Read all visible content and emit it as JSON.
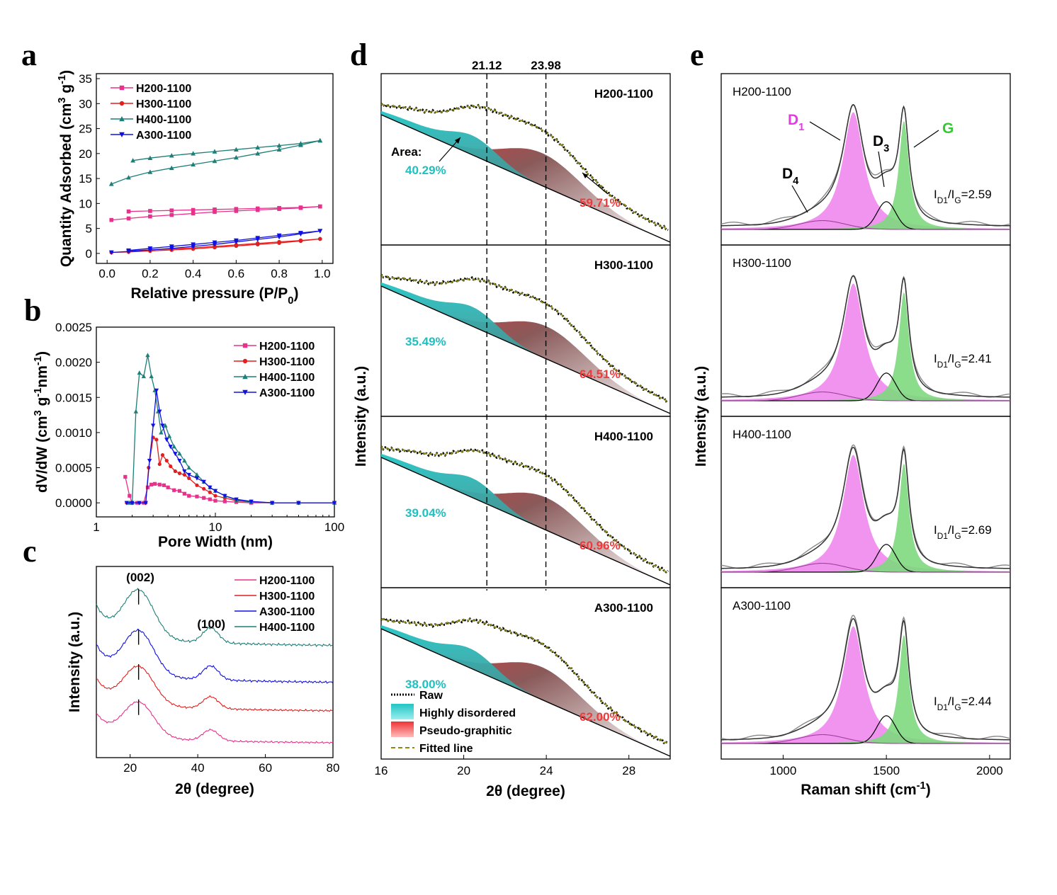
{
  "colors": {
    "H200": "#e8308c",
    "H300": "#e41e1e",
    "H400": "#1d7f78",
    "A300": "#1010e0",
    "disordered": "#22c4c4",
    "pseudo": "#ee3434",
    "fit": "#8a8a10",
    "cyan_text": "#20c0c0",
    "red_text": "#ee3a3a",
    "D1": "#e838e8",
    "G": "#35c835",
    "magenta_fill": "#ee88ee",
    "green_fill": "#7ed87e"
  },
  "panels": {
    "a": "a",
    "b": "b",
    "c": "c",
    "d": "d",
    "e": "e"
  },
  "chart_data": [
    {
      "id": "a",
      "type": "line",
      "xlabel": "Relative pressure (P/P",
      "xlabel_sub": "0",
      "xlabel_end": ")",
      "ylabel": "Quantity Adsorbed (cm",
      "ylabel_sup": "3",
      "ylabel_mid": " g",
      "ylabel_sup2": "-1",
      "ylabel_end": ")",
      "xlim": [
        -0.05,
        1.05
      ],
      "ylim": [
        -2,
        36
      ],
      "xticks": [
        "0.0",
        "0.2",
        "0.4",
        "0.6",
        "0.8",
        "1.0"
      ],
      "yticks": [
        "0",
        "5",
        "10",
        "15",
        "20",
        "25",
        "30",
        "35"
      ],
      "legend_position": "top-left",
      "series": [
        {
          "name": "H200-1100",
          "key": "H200",
          "marker": "square",
          "adsorption": [
            [
              0.02,
              6.7
            ],
            [
              0.1,
              7.0
            ],
            [
              0.2,
              7.4
            ],
            [
              0.3,
              7.7
            ],
            [
              0.4,
              8.0
            ],
            [
              0.5,
              8.3
            ],
            [
              0.6,
              8.5
            ],
            [
              0.7,
              8.7
            ],
            [
              0.8,
              8.9
            ],
            [
              0.9,
              9.1
            ],
            [
              0.99,
              9.4
            ]
          ],
          "desorption": [
            [
              0.99,
              9.4
            ],
            [
              0.9,
              9.2
            ],
            [
              0.8,
              9.1
            ],
            [
              0.7,
              9.0
            ],
            [
              0.6,
              8.9
            ],
            [
              0.5,
              8.8
            ],
            [
              0.4,
              8.7
            ],
            [
              0.3,
              8.6
            ],
            [
              0.2,
              8.5
            ],
            [
              0.1,
              8.4
            ]
          ]
        },
        {
          "name": "H300-1100",
          "key": "H300",
          "marker": "circle",
          "adsorption": [
            [
              0.02,
              0.2
            ],
            [
              0.1,
              0.3
            ],
            [
              0.2,
              0.5
            ],
            [
              0.3,
              0.7
            ],
            [
              0.4,
              0.9
            ],
            [
              0.5,
              1.2
            ],
            [
              0.6,
              1.5
            ],
            [
              0.7,
              1.8
            ],
            [
              0.8,
              2.1
            ],
            [
              0.9,
              2.5
            ],
            [
              0.99,
              2.9
            ]
          ],
          "desorption": [
            [
              0.99,
              2.9
            ],
            [
              0.9,
              2.6
            ],
            [
              0.8,
              2.3
            ],
            [
              0.7,
              2.0
            ],
            [
              0.6,
              1.7
            ],
            [
              0.5,
              1.4
            ],
            [
              0.4,
              1.1
            ],
            [
              0.3,
              0.9
            ],
            [
              0.2,
              0.7
            ],
            [
              0.1,
              0.5
            ]
          ]
        },
        {
          "name": "H400-1100",
          "key": "H400",
          "marker": "triangle",
          "adsorption": [
            [
              0.02,
              13.9
            ],
            [
              0.1,
              15.2
            ],
            [
              0.2,
              16.3
            ],
            [
              0.3,
              17.1
            ],
            [
              0.4,
              17.8
            ],
            [
              0.5,
              18.5
            ],
            [
              0.6,
              19.2
            ],
            [
              0.7,
              20.0
            ],
            [
              0.8,
              20.8
            ],
            [
              0.9,
              21.7
            ],
            [
              0.99,
              22.6
            ]
          ],
          "desorption": [
            [
              0.99,
              22.6
            ],
            [
              0.9,
              22.0
            ],
            [
              0.8,
              21.6
            ],
            [
              0.7,
              21.2
            ],
            [
              0.6,
              20.8
            ],
            [
              0.5,
              20.4
            ],
            [
              0.4,
              20.0
            ],
            [
              0.3,
              19.6
            ],
            [
              0.2,
              19.1
            ],
            [
              0.12,
              18.6
            ]
          ]
        },
        {
          "name": "A300-1100",
          "key": "A300",
          "marker": "triangle-down",
          "adsorption": [
            [
              0.02,
              0.2
            ],
            [
              0.1,
              0.4
            ],
            [
              0.2,
              0.7
            ],
            [
              0.3,
              1.0
            ],
            [
              0.4,
              1.4
            ],
            [
              0.5,
              1.8
            ],
            [
              0.6,
              2.3
            ],
            [
              0.7,
              2.8
            ],
            [
              0.8,
              3.3
            ],
            [
              0.9,
              3.9
            ],
            [
              0.99,
              4.5
            ]
          ],
          "desorption": [
            [
              0.99,
              4.5
            ],
            [
              0.9,
              4.1
            ],
            [
              0.8,
              3.6
            ],
            [
              0.7,
              3.1
            ],
            [
              0.6,
              2.6
            ],
            [
              0.5,
              2.2
            ],
            [
              0.4,
              1.8
            ],
            [
              0.3,
              1.4
            ],
            [
              0.2,
              1.0
            ],
            [
              0.1,
              0.6
            ]
          ]
        }
      ]
    },
    {
      "id": "b",
      "type": "line",
      "xscale": "log",
      "xlabel": "Pore Width (nm)",
      "ylabel": "dV/dW (cm",
      "ylabel_sup": "3",
      "ylabel_mid": " g",
      "ylabel_sup2": "-1",
      "ylabel_mid2": "nm",
      "ylabel_sup3": "-1",
      "ylabel_end": ")",
      "xlim": [
        1,
        100
      ],
      "ylim": [
        -0.0002,
        0.0025
      ],
      "xticks": [
        "1",
        "10",
        "100"
      ],
      "yticks": [
        "0.0000",
        "0.0005",
        "0.0010",
        "0.0015",
        "0.0020",
        "0.0025"
      ],
      "legend_position": "top-right",
      "series": [
        {
          "name": "H200-1100",
          "key": "H200",
          "marker": "square",
          "points": [
            [
              1.75,
              0.00037
            ],
            [
              1.9,
              0.0001
            ],
            [
              2.0,
              0.0
            ],
            [
              2.2,
              0.0
            ],
            [
              2.5,
              0.0
            ],
            [
              2.7,
              0.00022
            ],
            [
              2.9,
              0.00026
            ],
            [
              3.1,
              0.00027
            ],
            [
              3.4,
              0.00026
            ],
            [
              3.7,
              0.00025
            ],
            [
              4.0,
              0.00022
            ],
            [
              4.5,
              0.00018
            ],
            [
              5.0,
              0.00017
            ],
            [
              5.5,
              0.00013
            ],
            [
              6.0,
              0.0001
            ],
            [
              7.0,
              9e-05
            ],
            [
              8.0,
              7e-05
            ],
            [
              9.0,
              5e-05
            ],
            [
              10,
              3e-05
            ],
            [
              12,
              2e-05
            ],
            [
              15,
              1e-05
            ],
            [
              20,
              0.0
            ],
            [
              30,
              0.0
            ],
            [
              50,
              0.0
            ],
            [
              100,
              0.0
            ]
          ]
        },
        {
          "name": "H300-1100",
          "key": "H300",
          "marker": "circle",
          "points": [
            [
              1.8,
              0.0
            ],
            [
              2.0,
              0.0
            ],
            [
              2.3,
              0.0
            ],
            [
              2.6,
              0.0
            ],
            [
              2.75,
              0.0005
            ],
            [
              3.0,
              0.00093
            ],
            [
              3.2,
              0.0009
            ],
            [
              3.4,
              0.00055
            ],
            [
              3.6,
              0.00068
            ],
            [
              3.9,
              0.0006
            ],
            [
              4.2,
              0.00052
            ],
            [
              4.6,
              0.00045
            ],
            [
              5.0,
              0.00042
            ],
            [
              5.5,
              0.0004
            ],
            [
              6.0,
              0.00035
            ],
            [
              7.0,
              0.00025
            ],
            [
              8.0,
              0.0002
            ],
            [
              9.0,
              0.00015
            ],
            [
              10,
              0.0001
            ],
            [
              12,
              7e-05
            ],
            [
              15,
              3e-05
            ],
            [
              20,
              1e-05
            ],
            [
              30,
              0.0
            ],
            [
              50,
              0.0
            ],
            [
              100,
              0.0
            ]
          ]
        },
        {
          "name": "H400-1100",
          "key": "H400",
          "marker": "triangle",
          "points": [
            [
              1.9,
              0.0
            ],
            [
              2.0,
              0.0
            ],
            [
              2.15,
              0.0013
            ],
            [
              2.3,
              0.00185
            ],
            [
              2.5,
              0.0018
            ],
            [
              2.7,
              0.0021
            ],
            [
              2.9,
              0.0018
            ],
            [
              3.1,
              0.0016
            ],
            [
              3.3,
              0.0013
            ],
            [
              3.5,
              0.001
            ],
            [
              3.8,
              0.0011
            ],
            [
              4.1,
              0.00095
            ],
            [
              4.5,
              0.0008
            ],
            [
              5.0,
              0.0007
            ],
            [
              5.5,
              0.0006
            ],
            [
              6.0,
              0.0005
            ],
            [
              7.0,
              0.0004
            ],
            [
              8.0,
              0.0003
            ],
            [
              9.0,
              0.00022
            ],
            [
              10,
              0.00017
            ],
            [
              12,
              0.0001
            ],
            [
              15,
              4e-05
            ],
            [
              20,
              1e-05
            ],
            [
              30,
              0.0
            ],
            [
              50,
              0.0
            ],
            [
              100,
              0.0
            ]
          ]
        },
        {
          "name": "A300-1100",
          "key": "A300",
          "marker": "triangle-down",
          "points": [
            [
              1.8,
              0.0
            ],
            [
              2.0,
              0.0
            ],
            [
              2.3,
              0.0
            ],
            [
              2.6,
              0.0
            ],
            [
              2.8,
              0.0006
            ],
            [
              3.0,
              0.0011
            ],
            [
              3.2,
              0.0016
            ],
            [
              3.4,
              0.0013
            ],
            [
              3.6,
              0.0011
            ],
            [
              3.9,
              0.0009
            ],
            [
              4.2,
              0.0008
            ],
            [
              4.6,
              0.0007
            ],
            [
              5.0,
              0.0006
            ],
            [
              5.5,
              0.00045
            ],
            [
              6.0,
              0.0004
            ],
            [
              7.0,
              0.00035
            ],
            [
              8.0,
              0.0003
            ],
            [
              9.0,
              0.00022
            ],
            [
              10,
              0.00017
            ],
            [
              12,
              0.0001
            ],
            [
              15,
              5e-05
            ],
            [
              20,
              2e-05
            ],
            [
              30,
              0.0
            ],
            [
              50,
              0.0
            ],
            [
              100,
              0.0
            ]
          ]
        }
      ]
    },
    {
      "id": "c",
      "type": "line",
      "xlabel": "2θ (degree)",
      "ylabel": "Intensity (a.u.)",
      "xlim": [
        10,
        80
      ],
      "yaxis_ticks": false,
      "xticks": [
        "20",
        "40",
        "60",
        "80"
      ],
      "legend_position": "top-right",
      "peak_labels": [
        {
          "text": "(002)",
          "x": 23
        },
        {
          "text": "(100)",
          "x": 44
        }
      ],
      "series": [
        {
          "name": "H200-1100",
          "key": "H200",
          "offset": 0
        },
        {
          "name": "H300-1100",
          "key": "H300",
          "offset": 1
        },
        {
          "name": "A300-1100",
          "key": "A300",
          "offset": 2
        },
        {
          "name": "H400-1100",
          "key": "H400",
          "offset": 3
        }
      ]
    },
    {
      "id": "d",
      "type": "area",
      "xlabel": "2θ (degree)",
      "ylabel": "Intensity (a.u.)",
      "xlim": [
        16,
        30
      ],
      "xticks": [
        "16",
        "20",
        "24",
        "28"
      ],
      "reference_lines": [
        {
          "label": "21.12",
          "x": 21.12
        },
        {
          "label": "23.98",
          "x": 23.98
        }
      ],
      "area_label": "Area:",
      "legend": [
        "Raw",
        "Highly disordered",
        "Pseudo-graphitic",
        "Fitted line"
      ],
      "legend_position": "bottom-left",
      "subplots": [
        {
          "name": "H200-1100",
          "disordered_pct": "40.29%",
          "pseudo_pct": "59.71%",
          "peak1": 20.5,
          "peak2": 23.8
        },
        {
          "name": "H300-1100",
          "disordered_pct": "35.49%",
          "pseudo_pct": "64.51%",
          "peak1": 20.5,
          "peak2": 24.0
        },
        {
          "name": "H400-1100",
          "disordered_pct": "39.04%",
          "pseudo_pct": "60.96%",
          "peak1": 20.5,
          "peak2": 24.0
        },
        {
          "name": "A300-1100",
          "disordered_pct": "38.00%",
          "pseudo_pct": "62.00%",
          "peak1": 20.4,
          "peak2": 23.8
        }
      ]
    },
    {
      "id": "e",
      "type": "area",
      "xlabel": "Raman shift (cm",
      "xlabel_sup": "-1",
      "xlabel_end": ")",
      "ylabel": "Intensity (a.u.)",
      "xlim": [
        700,
        2100
      ],
      "xticks": [
        "1000",
        "1500",
        "2000"
      ],
      "band_labels": {
        "D1": "D",
        "D1_sub": "1",
        "D3": "D",
        "D3_sub": "3",
        "D4": "D",
        "D4_sub": "4",
        "G": "G"
      },
      "ratio_prefix": "I",
      "ratio_sub1": "D1",
      "ratio_mid": "/I",
      "ratio_sub2": "G",
      "subplots": [
        {
          "name": "H200-1100",
          "ratio": "=2.59"
        },
        {
          "name": "H300-1100",
          "ratio": "=2.41"
        },
        {
          "name": "H400-1100",
          "ratio": "=2.69"
        },
        {
          "name": "A300-1100",
          "ratio": "=2.44"
        }
      ]
    }
  ]
}
